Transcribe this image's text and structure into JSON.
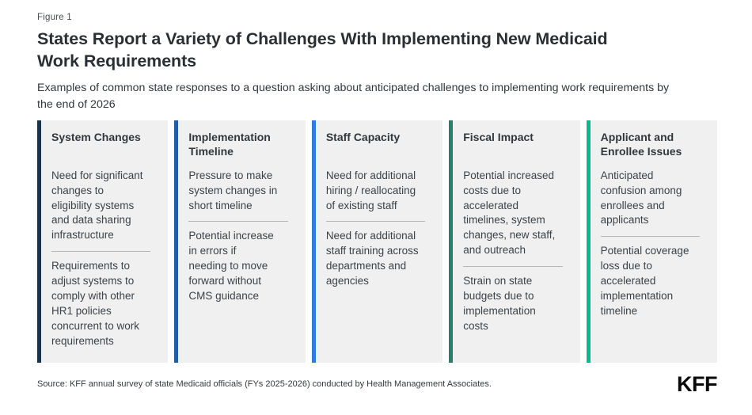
{
  "figure_label": "Figure 1",
  "title": "States Report a Variety of Challenges With Implementing New Medicaid\nWork Requirements",
  "subtitle": "Examples of common state responses to a question asking about anticipated challenges to implementing work requirements by\nthe end of 2026",
  "columns": [
    {
      "accent_color": "#16334f",
      "header": "System Changes",
      "items": [
        "Need for significant\nchanges to\neligibility systems\nand data sharing\ninfrastructure",
        "Requirements to\nadjust systems to\ncomply with other\nHR1 policies\nconcurrent to work\nrequirements"
      ]
    },
    {
      "accent_color": "#205ea6",
      "header": "Implementation\nTimeline",
      "items": [
        "Pressure to make\nsystem changes in\nshort timeline",
        "Potential increase\nin errors if\nneeding to move\nforward without\nCMS guidance"
      ]
    },
    {
      "accent_color": "#2e7ce1",
      "header": "Staff Capacity",
      "items": [
        "Need for additional\nhiring / reallocating\nof existing staff",
        "Need for additional\nstaff training across\ndepartments and\nagencies"
      ]
    },
    {
      "accent_color": "#28806b",
      "header": "Fiscal Impact",
      "items": [
        "Potential increased\ncosts due to\naccelerated\ntimelines, system\nchanges, new staff,\nand outreach",
        "Strain on state\nbudgets due to\nimplementation\ncosts"
      ]
    },
    {
      "accent_color": "#0fb78f",
      "header": "Applicant and\nEnrollee Issues",
      "items": [
        "Anticipated\nconfusion among\nenrollees and\napplicants",
        "Potential coverage\nloss due to\naccelerated\nimplementation\ntimeline"
      ]
    }
  ],
  "footer": {
    "source": "Source: KFF annual survey of state Medicaid officials (FYs 2025-2026) conducted by Health Management Associates.",
    "logo": "KFF"
  }
}
